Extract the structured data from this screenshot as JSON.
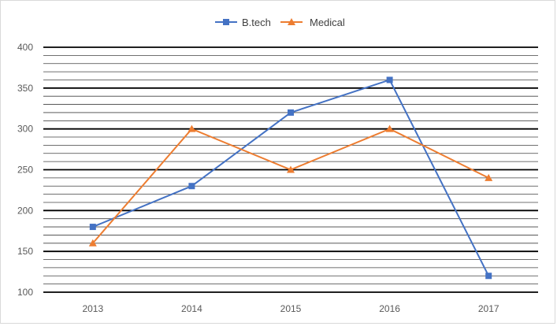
{
  "chart_data": {
    "type": "line",
    "categories": [
      "2013",
      "2014",
      "2015",
      "2016",
      "2017"
    ],
    "series": [
      {
        "name": "B.tech",
        "values": [
          180,
          230,
          320,
          360,
          120
        ],
        "color": "#4472c4",
        "marker": "square"
      },
      {
        "name": "Medical",
        "values": [
          160,
          300,
          250,
          300,
          240
        ],
        "color": "#ed7d31",
        "marker": "triangle"
      }
    ],
    "ylim": [
      100,
      400
    ],
    "y_major_ticks": [
      100,
      150,
      200,
      250,
      300,
      350,
      400
    ],
    "y_minor_step": 10,
    "grid": true,
    "legend_position": "top"
  }
}
